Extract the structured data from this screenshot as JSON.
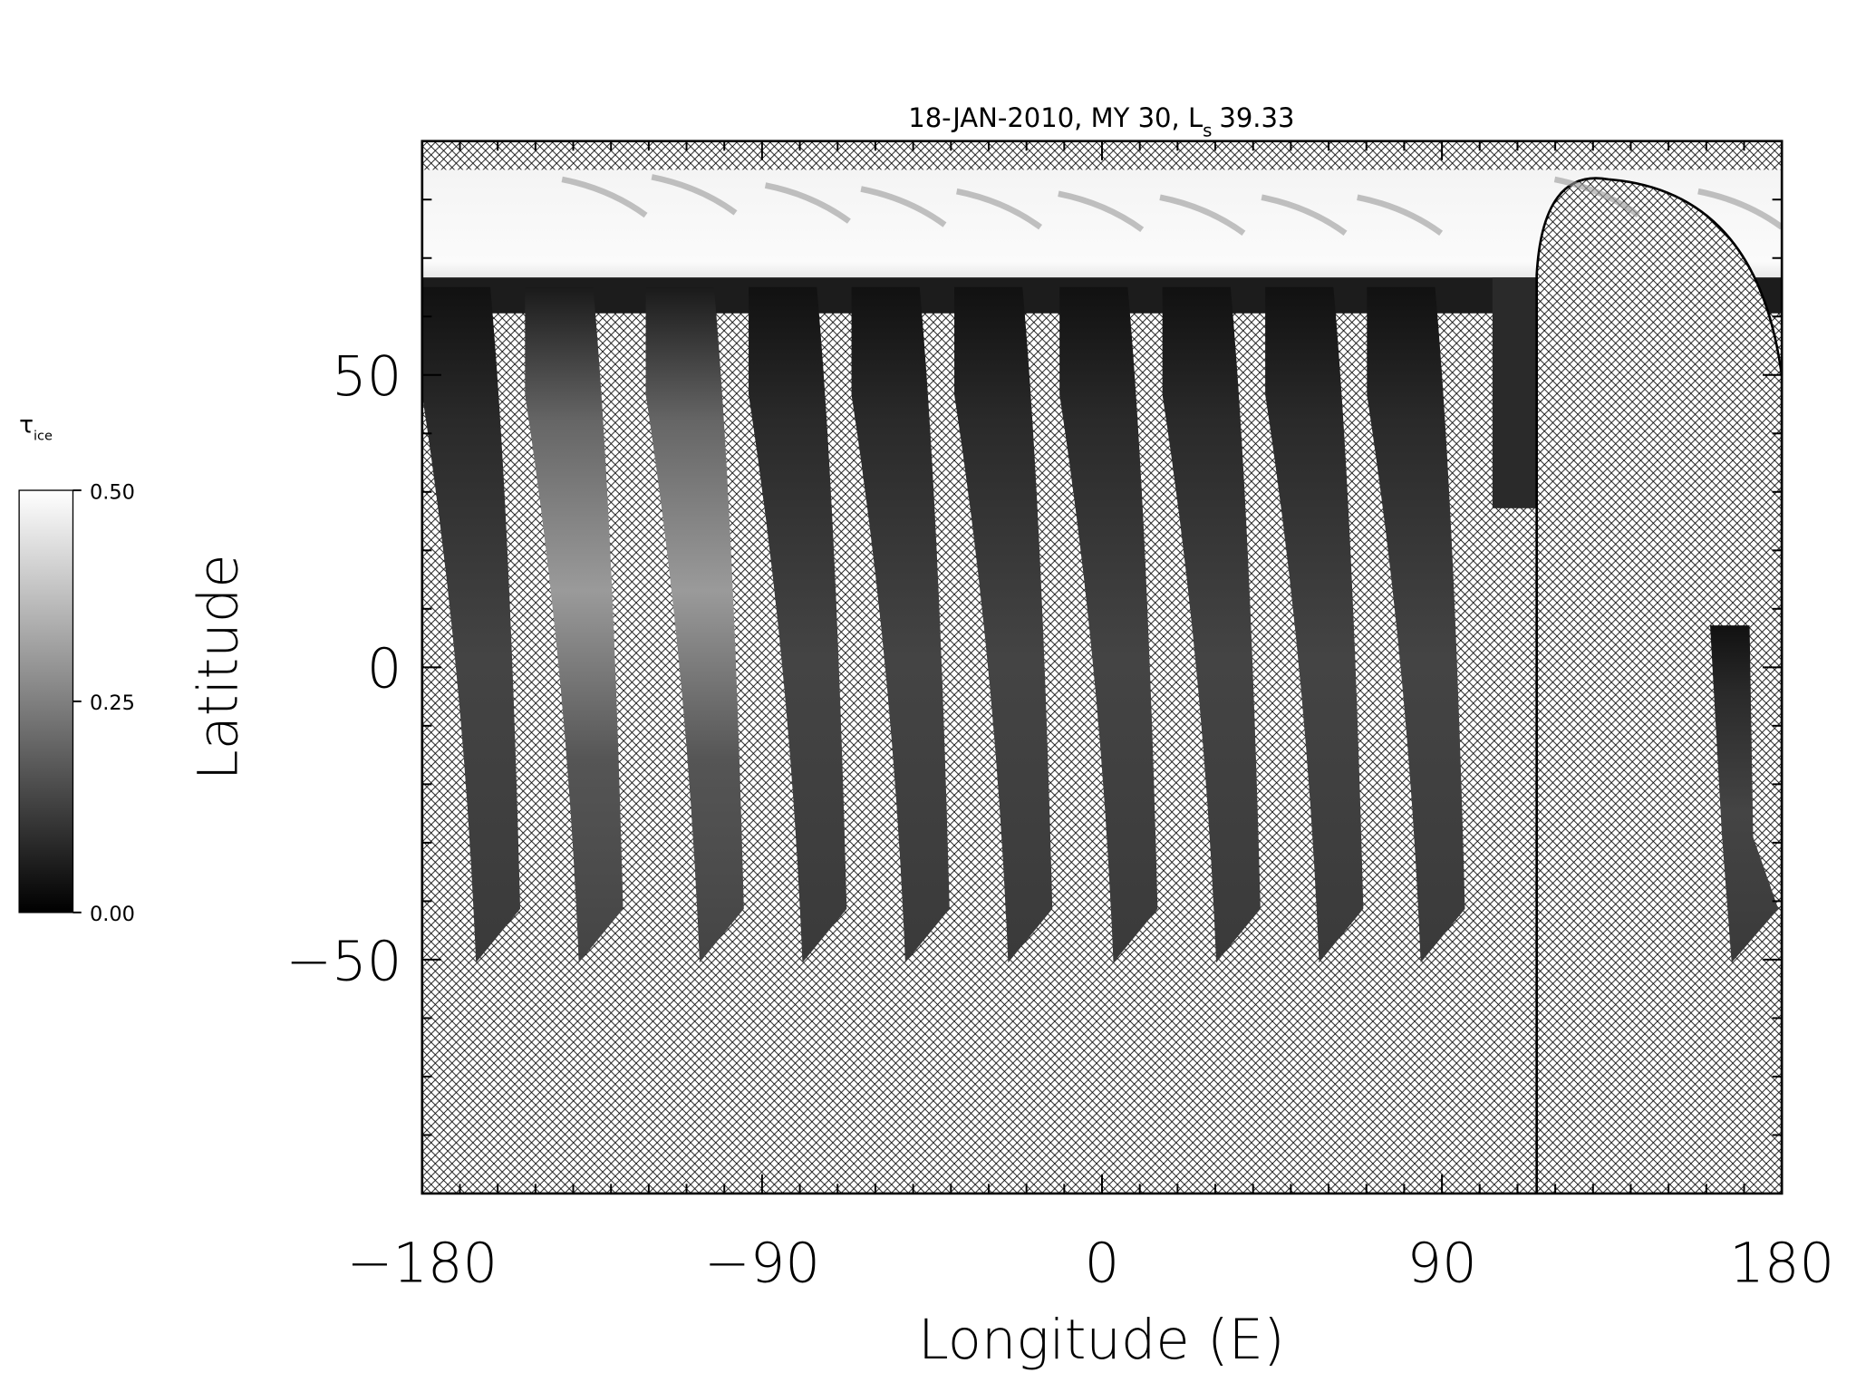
{
  "chart_data": {
    "type": "map",
    "title": "18-JAN-2010, MY 30,  L",
    "title_subscript": "s",
    "title_suffix": "39.33",
    "x_label": "Longitude (E)",
    "y_label": "Latitude",
    "xlim": [
      -180,
      180
    ],
    "ylim": [
      -90,
      90
    ],
    "xticks": [
      {
        "value": -180,
        "label": "−180"
      },
      {
        "value": -90,
        "label": "−90"
      },
      0,
      90,
      180
    ],
    "yticks": [
      {
        "value": -50,
        "label": "−50"
      },
      0,
      50
    ],
    "xminorticks": [
      -170,
      -160,
      -150,
      -140,
      -130,
      -120,
      -110,
      -100,
      -80,
      -70,
      -60,
      -50,
      -40,
      -30,
      -20,
      -10,
      10,
      20,
      30,
      40,
      50,
      60,
      70,
      80,
      100,
      110,
      120,
      130,
      140,
      150,
      160,
      170
    ],
    "yminorticks": [
      -80,
      -70,
      -60,
      -40,
      -30,
      -20,
      -10,
      10,
      20,
      30,
      40,
      60,
      70,
      80
    ],
    "colorbar": {
      "label": "τ",
      "label_subscript": "ice",
      "lim": [
        0,
        0.5
      ],
      "ticks": [
        {
          "value": 0,
          "label": "0.00"
        },
        {
          "value": 0.25,
          "label": "0.25"
        },
        {
          "value": 0.5,
          "label": "0.50"
        }
      ]
    }
  }
}
